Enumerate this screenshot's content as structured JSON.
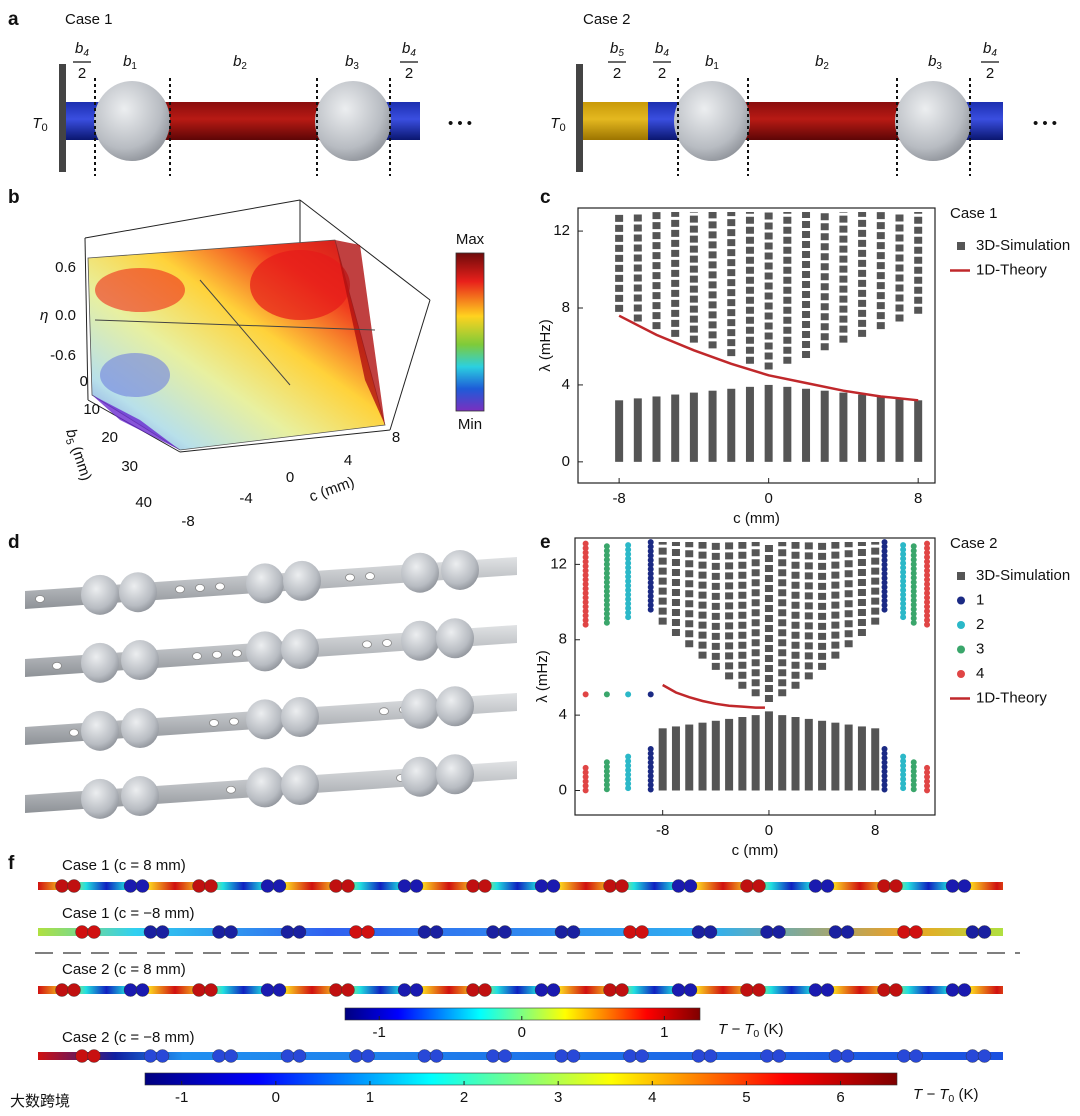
{
  "figure": {
    "panel_labels": [
      "a",
      "b",
      "c",
      "d",
      "e",
      "f"
    ],
    "a": {
      "case1": "Case 1",
      "case2": "Case 2",
      "ellipsis": "• • •",
      "wall": {
        "text": "T",
        "sub": "0"
      },
      "segments1": [
        {
          "text": "b",
          "sub": "4",
          "den": "2"
        },
        {
          "text": "b",
          "sub": "1"
        },
        {
          "text": "b",
          "sub": "2"
        },
        {
          "text": "b",
          "sub": "3"
        },
        {
          "text": "b",
          "sub": "4",
          "den": "2"
        }
      ],
      "segments2": [
        {
          "text": "b",
          "sub": "5",
          "den": "2"
        },
        {
          "text": "b",
          "sub": "4",
          "den": "2"
        },
        {
          "text": "b",
          "sub": "1"
        },
        {
          "text": "b",
          "sub": "2"
        },
        {
          "text": "b",
          "sub": "3"
        },
        {
          "text": "b",
          "sub": "4",
          "den": "2"
        }
      ]
    },
    "b": {
      "zlabel": "η",
      "zticks": [
        "0.6",
        "0.0",
        "-0.6"
      ],
      "ylabel": {
        "text": "b",
        "sub": "5",
        "after": " (mm)"
      },
      "yticks": [
        0,
        10,
        20,
        30,
        40
      ],
      "xlabel": "c (mm)",
      "xticks": [
        -8,
        -4,
        0,
        4,
        8
      ],
      "colorbar": {
        "max": "Max",
        "min": "Min"
      }
    },
    "f": {
      "cases": [
        "Case 1 (c = 8 mm)",
        "Case 1 (c = −8 mm)",
        "Case 2 (c = 8 mm)",
        "Case 2 (c = −8 mm)"
      ],
      "colorbar1": {
        "lim": [
          -1.24,
          1.25
        ],
        "ticks": [
          -1,
          0,
          1
        ],
        "label": {
          "text": "T − T",
          "sub": "0",
          "after": " (K)"
        }
      },
      "colorbar2": {
        "lim": [
          -1.39,
          6.6
        ],
        "ticks": [
          -1,
          0,
          1,
          2,
          3,
          4,
          5,
          6
        ],
        "label": {
          "text": "T − T",
          "sub": "0",
          "after": " (K)"
        }
      }
    },
    "watermark": "大数跨境"
  },
  "chart_data": [
    {
      "type": "band",
      "title": "Case 1",
      "xlabel": "c (mm)",
      "ylabel": "λ (mHz)",
      "xlim": [
        -10.2,
        8.9
      ],
      "ylim": [
        -1.1,
        13.2
      ],
      "xticks": [
        -8,
        0,
        8
      ],
      "yticks": [
        0,
        4,
        8,
        12
      ],
      "series": [
        {
          "name": "3D-Simulation",
          "color": "#555555",
          "x": [
            -8,
            -7,
            -6,
            -5,
            -4,
            -3,
            -2,
            -1,
            0,
            1,
            2,
            3,
            4,
            5,
            6,
            7,
            8
          ],
          "lower": [
            3.2,
            3.3,
            3.4,
            3.5,
            3.6,
            3.7,
            3.8,
            3.9,
            4.0,
            3.9,
            3.8,
            3.7,
            3.6,
            3.5,
            3.4,
            3.3,
            3.2
          ],
          "upper": [
            7.8,
            7.3,
            6.9,
            6.5,
            6.2,
            5.9,
            5.5,
            5.1,
            4.8,
            5.1,
            5.4,
            5.8,
            6.2,
            6.5,
            6.9,
            7.3,
            7.7
          ]
        },
        {
          "name": "1D-Theory",
          "color": "#c0282b",
          "x": [
            -8,
            -6,
            -4,
            -2,
            0,
            2,
            4,
            6,
            8
          ],
          "values": [
            7.6,
            6.6,
            5.8,
            5.1,
            4.5,
            4.1,
            3.7,
            3.4,
            3.2
          ]
        }
      ]
    },
    {
      "type": "band",
      "title": "Case 2",
      "xlabel": "c (mm)",
      "ylabel": "λ (mHz)",
      "xlim": [
        -14.6,
        12.5
      ],
      "ylim": [
        -1.3,
        13.4
      ],
      "xticks": [
        -8,
        0,
        8
      ],
      "yticks": [
        0,
        4,
        8,
        12
      ],
      "series": [
        {
          "name": "3D-Simulation",
          "color": "#555555",
          "x": [
            -8,
            -7,
            -6,
            -5,
            -4,
            -3,
            -2,
            -1,
            0,
            1,
            2,
            3,
            4,
            5,
            6,
            7,
            8
          ],
          "lower": [
            3.3,
            3.4,
            3.5,
            3.6,
            3.7,
            3.8,
            3.9,
            4.0,
            4.2,
            4.0,
            3.9,
            3.8,
            3.7,
            3.6,
            3.5,
            3.4,
            3.3
          ],
          "upper": [
            8.8,
            8.2,
            7.6,
            7.0,
            6.4,
            5.9,
            5.4,
            5.0,
            4.7,
            5.0,
            5.4,
            5.9,
            6.4,
            7.0,
            7.6,
            8.2,
            8.8
          ]
        },
        {
          "name": "1",
          "color": "#1b2a84",
          "x": [
            -8.9,
            8.7
          ],
          "lower": [
            2.2,
            2.2
          ],
          "upper": [
            9.6,
            9.6
          ],
          "state": [
            5.1,
            null
          ]
        },
        {
          "name": "2",
          "color": "#2bb8c8",
          "x": [
            -10.6,
            10.1
          ],
          "lower": [
            1.8,
            1.8
          ],
          "upper": [
            9.2,
            9.2
          ],
          "state": [
            5.1,
            null
          ]
        },
        {
          "name": "3",
          "color": "#3aa66b",
          "x": [
            -12.2,
            10.9
          ],
          "lower": [
            1.5,
            1.5
          ],
          "upper": [
            8.9,
            8.9
          ],
          "state": [
            5.1,
            null
          ]
        },
        {
          "name": "4",
          "color": "#e04545",
          "x": [
            -13.8,
            11.9
          ],
          "lower": [
            1.2,
            1.2
          ],
          "upper": [
            8.8,
            8.8
          ],
          "state": [
            5.1,
            null
          ]
        },
        {
          "name": "1D-Theory",
          "color": "#c0282b",
          "x": [
            -8,
            -7,
            -6,
            -5,
            -4,
            -3,
            -2,
            -1,
            -0.3
          ],
          "values": [
            5.6,
            5.2,
            4.95,
            4.75,
            4.6,
            4.5,
            4.45,
            4.4,
            4.4
          ]
        }
      ]
    }
  ]
}
